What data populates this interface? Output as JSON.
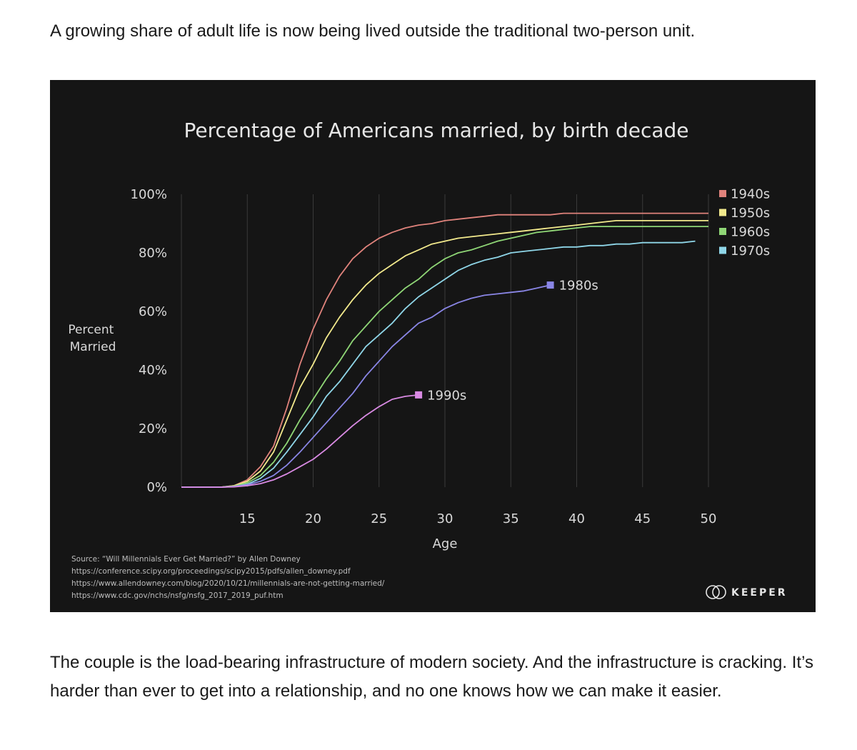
{
  "article": {
    "intro": "A growing share of adult life is now being lived outside the traditional two-person unit.",
    "closing": "The couple is the load-bearing infrastructure of modern society. And the infrastructure is cracking. It’s harder than ever to get into a relationship, and no one knows how we can make it easier."
  },
  "colors": {
    "background": "#151515",
    "grid": "#3a3a3a",
    "text": "#d9d9d9",
    "label": "#bdbdbd"
  },
  "chart_data": {
    "type": "line",
    "title": "Percentage of Americans married, by birth decade",
    "xlabel": "Age",
    "ylabel_lines": [
      "Percent",
      "Married"
    ],
    "xlim": [
      10,
      50
    ],
    "ylim": [
      0,
      100
    ],
    "xticks": [
      15,
      20,
      25,
      30,
      35,
      40,
      45,
      50
    ],
    "yticks": [
      0,
      20,
      40,
      60,
      80,
      100
    ],
    "xtick_labels": [
      "15",
      "20",
      "25",
      "30",
      "35",
      "40",
      "45",
      "50"
    ],
    "ytick_labels": [
      "0%",
      "20%",
      "40%",
      "60%",
      "80%",
      "100%"
    ],
    "grid": true,
    "legend_position": "right",
    "series": [
      {
        "name": "1940s",
        "color": "#e0837c",
        "legend": true,
        "x": [
          10,
          13,
          14,
          15,
          16,
          17,
          18,
          19,
          20,
          21,
          22,
          23,
          24,
          25,
          26,
          27,
          28,
          29,
          30,
          31,
          32,
          33,
          34,
          35,
          36,
          37,
          38,
          39,
          40,
          41,
          42,
          43,
          44,
          45,
          46,
          47,
          48,
          49,
          50
        ],
        "y": [
          0,
          0,
          0.5,
          2.5,
          7,
          14,
          27,
          42,
          54,
          64,
          72,
          78,
          82,
          85,
          87,
          88.5,
          89.5,
          90,
          91,
          91.5,
          92,
          92.5,
          93,
          93,
          93,
          93,
          93,
          93.5,
          93.5,
          93.5,
          93.5,
          93.5,
          93.5,
          93.5,
          93.5,
          93.5,
          93.5,
          93.5,
          93.5
        ]
      },
      {
        "name": "1950s",
        "color": "#f2e98c",
        "legend": true,
        "x": [
          10,
          13,
          14,
          15,
          16,
          17,
          18,
          19,
          20,
          21,
          22,
          23,
          24,
          25,
          26,
          27,
          28,
          29,
          30,
          31,
          32,
          33,
          34,
          35,
          36,
          37,
          38,
          39,
          40,
          41,
          42,
          43,
          44,
          45,
          46,
          47,
          48,
          49,
          50
        ],
        "y": [
          0,
          0,
          0.5,
          2,
          5.5,
          12,
          23,
          34,
          42,
          51,
          58,
          64,
          69,
          73,
          76,
          79,
          81,
          83,
          84,
          85,
          85.5,
          86,
          86.5,
          87,
          87.5,
          88,
          88.5,
          89,
          89.5,
          90,
          90.5,
          91,
          91,
          91,
          91,
          91,
          91,
          91,
          91
        ]
      },
      {
        "name": "1960s",
        "color": "#8fd676",
        "legend": true,
        "x": [
          10,
          13,
          14,
          15,
          16,
          17,
          18,
          19,
          20,
          21,
          22,
          23,
          24,
          25,
          26,
          27,
          28,
          29,
          30,
          31,
          32,
          33,
          34,
          35,
          36,
          37,
          38,
          39,
          40,
          41,
          42,
          43,
          44,
          45,
          46,
          47,
          48,
          49,
          50
        ],
        "y": [
          0,
          0,
          0.3,
          1.5,
          4,
          8.5,
          15,
          23,
          30,
          37,
          43,
          50,
          55,
          60,
          64,
          68,
          71,
          75,
          78,
          80,
          81,
          82.5,
          84,
          85,
          86,
          87,
          87.5,
          88,
          88.5,
          89,
          89,
          89,
          89,
          89,
          89,
          89,
          89,
          89,
          89
        ]
      },
      {
        "name": "1970s",
        "color": "#8fd6e8",
        "legend": true,
        "x": [
          10,
          13,
          14,
          15,
          16,
          17,
          18,
          19,
          20,
          21,
          22,
          23,
          24,
          25,
          26,
          27,
          28,
          29,
          30,
          31,
          32,
          33,
          34,
          35,
          36,
          37,
          38,
          39,
          40,
          41,
          42,
          43,
          44,
          45,
          46,
          47,
          48,
          49
        ],
        "y": [
          0,
          0,
          0.2,
          1,
          3,
          6.5,
          12,
          18,
          24,
          31,
          36,
          42,
          48,
          52,
          56,
          61,
          65,
          68,
          71,
          74,
          76,
          77.5,
          78.5,
          80,
          80.5,
          81,
          81.5,
          82,
          82,
          82.5,
          82.5,
          83,
          83,
          83.5,
          83.5,
          83.5,
          83.5,
          84
        ]
      },
      {
        "name": "1980s",
        "color": "#8a86e6",
        "legend": false,
        "x": [
          10,
          13,
          14,
          15,
          16,
          17,
          18,
          19,
          20,
          21,
          22,
          23,
          24,
          25,
          26,
          27,
          28,
          29,
          30,
          31,
          32,
          33,
          34,
          35,
          36,
          37,
          38
        ],
        "y": [
          0,
          0,
          0.2,
          0.8,
          2,
          4,
          7.5,
          12,
          17,
          22,
          27,
          32,
          38,
          43,
          48,
          52,
          56,
          58,
          61,
          63,
          64.5,
          65.5,
          66,
          66.5,
          67,
          68,
          69
        ]
      },
      {
        "name": "1990s",
        "color": "#d98ae3",
        "legend": false,
        "x": [
          10,
          13,
          14,
          15,
          16,
          17,
          18,
          19,
          20,
          21,
          22,
          23,
          24,
          25,
          26,
          27,
          28
        ],
        "y": [
          0,
          0,
          0.1,
          0.5,
          1.2,
          2.5,
          4.5,
          7,
          9.5,
          13,
          17,
          21,
          24.5,
          27.5,
          30,
          31,
          31.5
        ]
      }
    ],
    "source_lines": [
      "Source: “Will Millennials Ever Get Married?” by Allen Downey",
      "https://conference.scipy.org/proceedings/scipy2015/pdfs/allen_downey.pdf",
      "https://www.allendowney.com/blog/2020/10/21/millennials-are-not-getting-married/",
      "https://www.cdc.gov/nchs/nsfg/nsfg_2017_2019_puf.htm"
    ],
    "brand": "KEEPER"
  }
}
